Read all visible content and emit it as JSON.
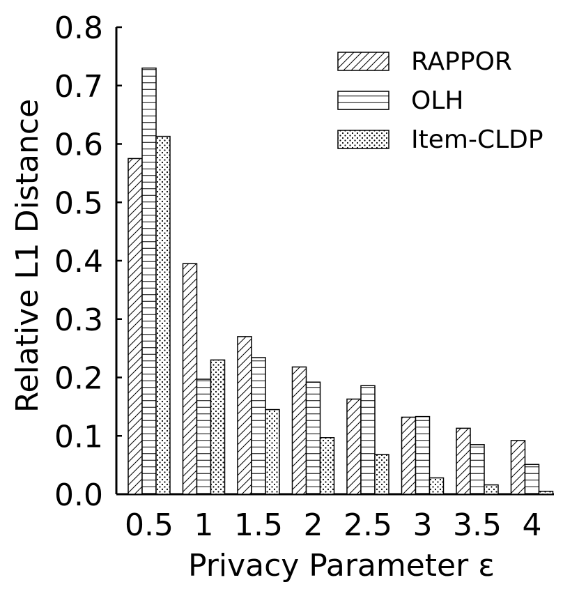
{
  "chart_data": {
    "type": "bar",
    "xlabel": "Privacy Parameter ε",
    "ylabel": "Relative L1 Distance",
    "categories": [
      "0.5",
      "1",
      "1.5",
      "2",
      "2.5",
      "3",
      "3.5",
      "4"
    ],
    "ylim": [
      0,
      0.8
    ],
    "yticks": [
      "0.0",
      "0.1",
      "0.2",
      "0.3",
      "0.4",
      "0.5",
      "0.6",
      "0.7",
      "0.8"
    ],
    "grid": false,
    "legend_position": "top-right",
    "series": [
      {
        "name": "RAPPOR",
        "pattern": "diagonal-hatch",
        "values": [
          0.575,
          0.395,
          0.27,
          0.218,
          0.163,
          0.132,
          0.113,
          0.092
        ]
      },
      {
        "name": "OLH",
        "pattern": "horizontal-lines",
        "values": [
          0.73,
          0.197,
          0.234,
          0.192,
          0.186,
          0.133,
          0.085,
          0.051
        ]
      },
      {
        "name": "Item-CLDP",
        "pattern": "dots",
        "values": [
          0.613,
          0.23,
          0.145,
          0.097,
          0.068,
          0.028,
          0.016,
          0.005
        ]
      }
    ]
  }
}
